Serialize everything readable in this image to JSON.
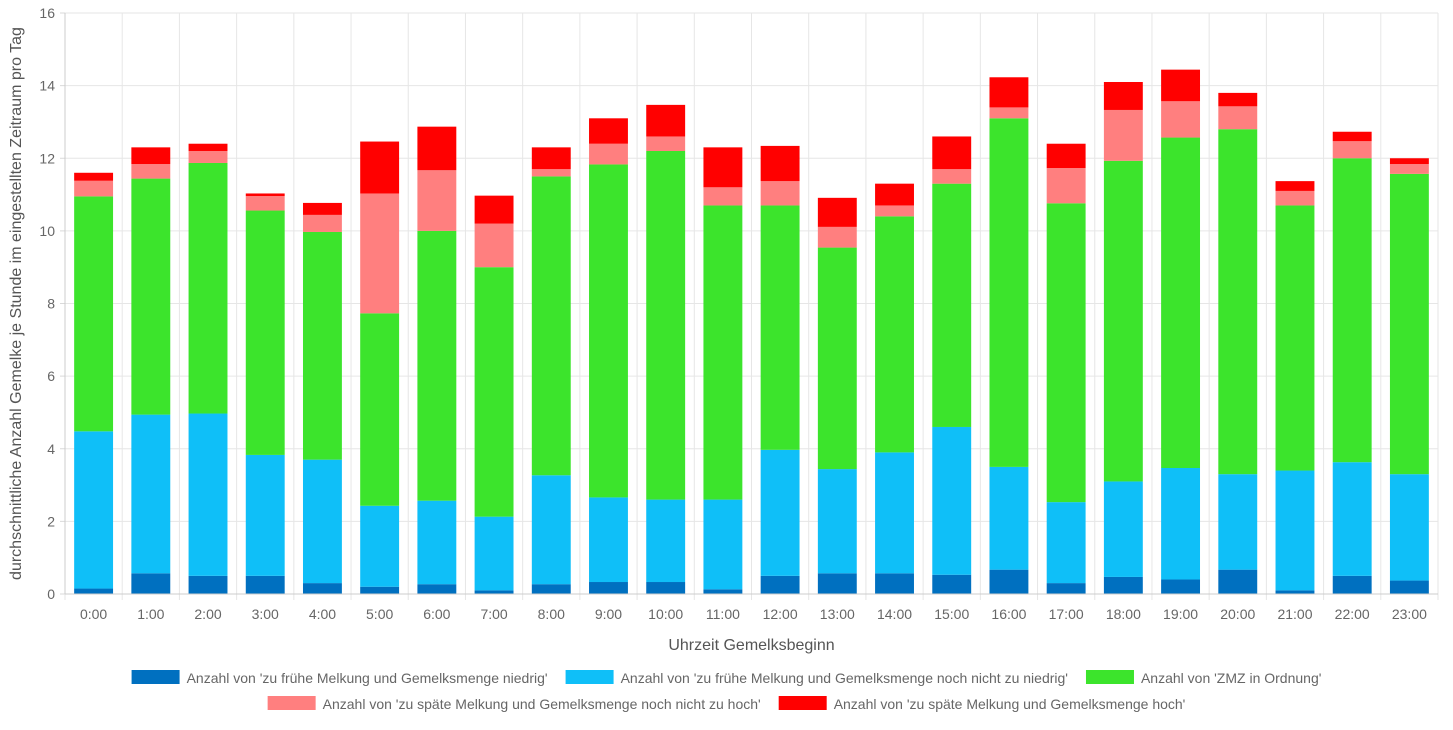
{
  "chart_data": {
    "type": "bar",
    "stacked": true,
    "xlabel": "Uhrzeit Gemelksbeginn",
    "ylabel": "durchschnittliche Anzahl Gemelke je Stunde im eingestellten Zeitraum pro Tag",
    "ylim": [
      0,
      16
    ],
    "yticks": [
      0,
      2,
      4,
      6,
      8,
      10,
      12,
      14,
      16
    ],
    "grid": true,
    "legend_position": "bottom",
    "categories": [
      "0:00",
      "1:00",
      "2:00",
      "3:00",
      "4:00",
      "5:00",
      "6:00",
      "7:00",
      "8:00",
      "9:00",
      "10:00",
      "11:00",
      "12:00",
      "13:00",
      "14:00",
      "15:00",
      "16:00",
      "17:00",
      "18:00",
      "19:00",
      "20:00",
      "21:00",
      "22:00",
      "23:00"
    ],
    "series": [
      {
        "name": "Anzahl von 'zu frühe Melkung und Gemelksmenge niedrig'",
        "color": "#0070c0",
        "values": [
          0.15,
          0.57,
          0.5,
          0.5,
          0.3,
          0.2,
          0.27,
          0.1,
          0.27,
          0.33,
          0.33,
          0.13,
          0.5,
          0.57,
          0.57,
          0.53,
          0.67,
          0.3,
          0.47,
          0.4,
          0.67,
          0.1,
          0.5,
          0.37
        ]
      },
      {
        "name": "Anzahl von 'zu frühe Melkung und Gemelksmenge noch nicht zu niedrig'",
        "color": "#0fbff8",
        "values": [
          4.33,
          4.37,
          4.47,
          3.33,
          3.4,
          2.23,
          2.3,
          2.03,
          3.0,
          2.33,
          2.27,
          2.47,
          3.47,
          2.87,
          3.33,
          4.07,
          2.83,
          2.23,
          2.63,
          3.07,
          2.63,
          3.3,
          3.13,
          2.93
        ]
      },
      {
        "name": "Anzahl von 'ZMZ in Ordnung'",
        "color": "#3ce42c",
        "values": [
          6.47,
          6.5,
          6.9,
          6.73,
          6.27,
          5.3,
          7.43,
          6.87,
          8.23,
          9.17,
          9.6,
          8.1,
          6.73,
          6.1,
          6.5,
          6.7,
          9.6,
          8.23,
          8.83,
          9.1,
          9.5,
          7.3,
          8.37,
          8.27
        ]
      },
      {
        "name": "Anzahl von 'zu späte Melkung und Gemelksmenge noch nicht zu hoch'",
        "color": "#ff7f7f",
        "values": [
          0.43,
          0.4,
          0.33,
          0.4,
          0.47,
          3.3,
          1.67,
          1.2,
          0.2,
          0.57,
          0.4,
          0.5,
          0.67,
          0.57,
          0.3,
          0.4,
          0.3,
          0.97,
          1.4,
          1.0,
          0.63,
          0.4,
          0.47,
          0.27
        ]
      },
      {
        "name": "Anzahl von 'zu späte Melkung und Gemelksmenge hoch'",
        "color": "#ff0000",
        "values": [
          0.22,
          0.46,
          0.2,
          0.07,
          0.33,
          1.43,
          1.2,
          0.77,
          0.6,
          0.7,
          0.87,
          1.1,
          0.97,
          0.8,
          0.6,
          0.9,
          0.83,
          0.67,
          0.77,
          0.87,
          0.37,
          0.27,
          0.26,
          0.16
        ]
      }
    ]
  }
}
